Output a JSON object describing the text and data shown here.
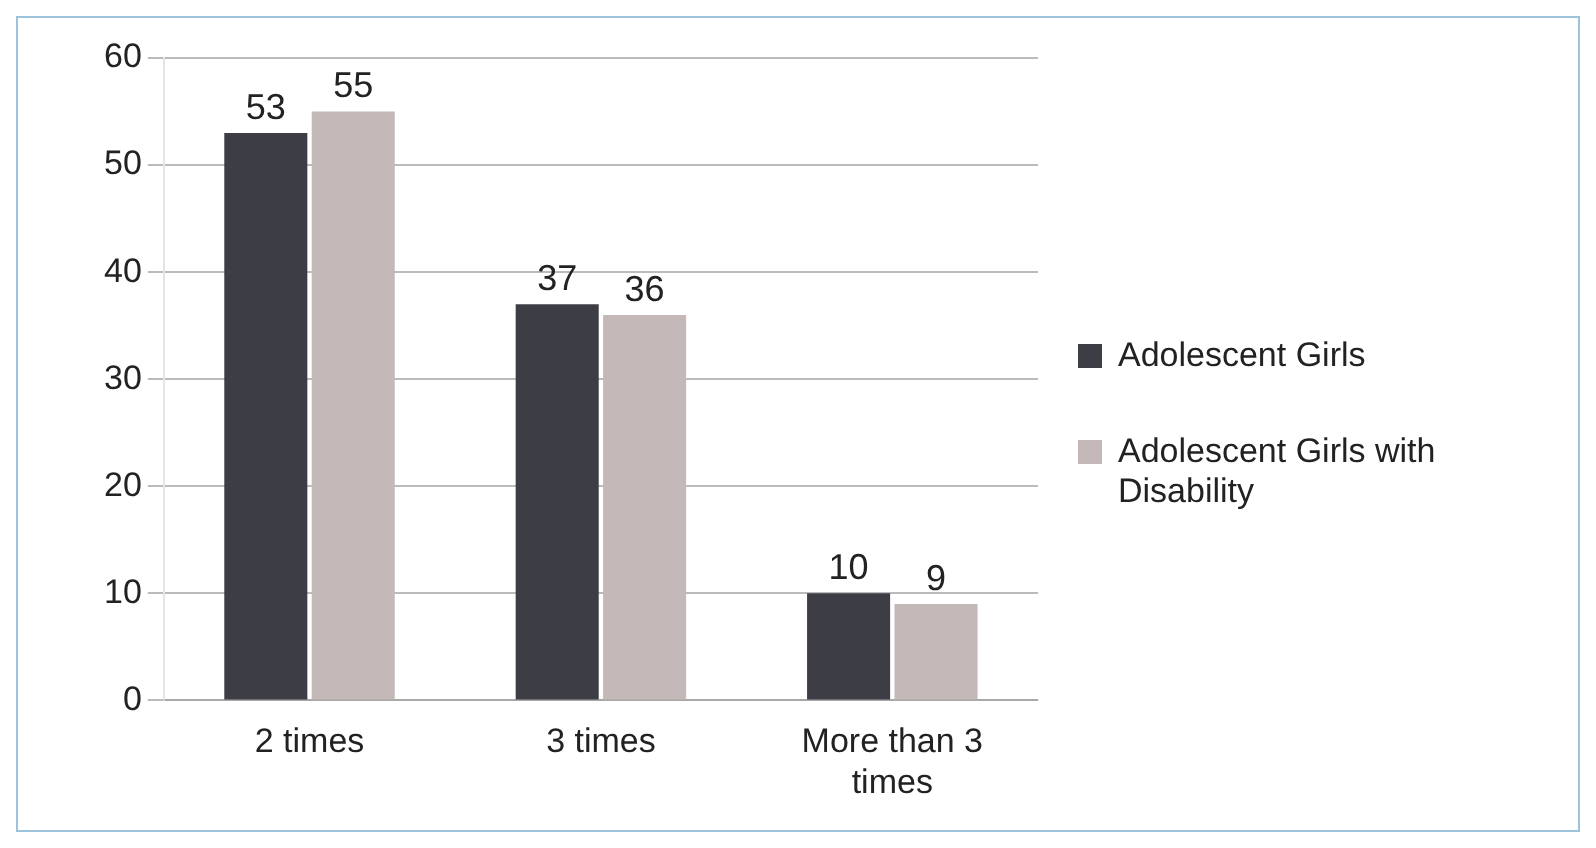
{
  "chart_data": {
    "type": "bar",
    "categories": [
      "2 times",
      "3 times",
      "More than 3 times"
    ],
    "series": [
      {
        "name": "Adolescent Girls",
        "color": "#3d3d45",
        "values": [
          53,
          37,
          10
        ]
      },
      {
        "name": "Adolescent Girls with Disability",
        "color": "#c4b8b8",
        "values": [
          55,
          36,
          9
        ]
      }
    ],
    "ylim": [
      0,
      60
    ],
    "yticks": [
      0,
      10,
      20,
      30,
      40,
      50,
      60
    ],
    "grid": "y",
    "legend": "right",
    "data_labels": true
  }
}
